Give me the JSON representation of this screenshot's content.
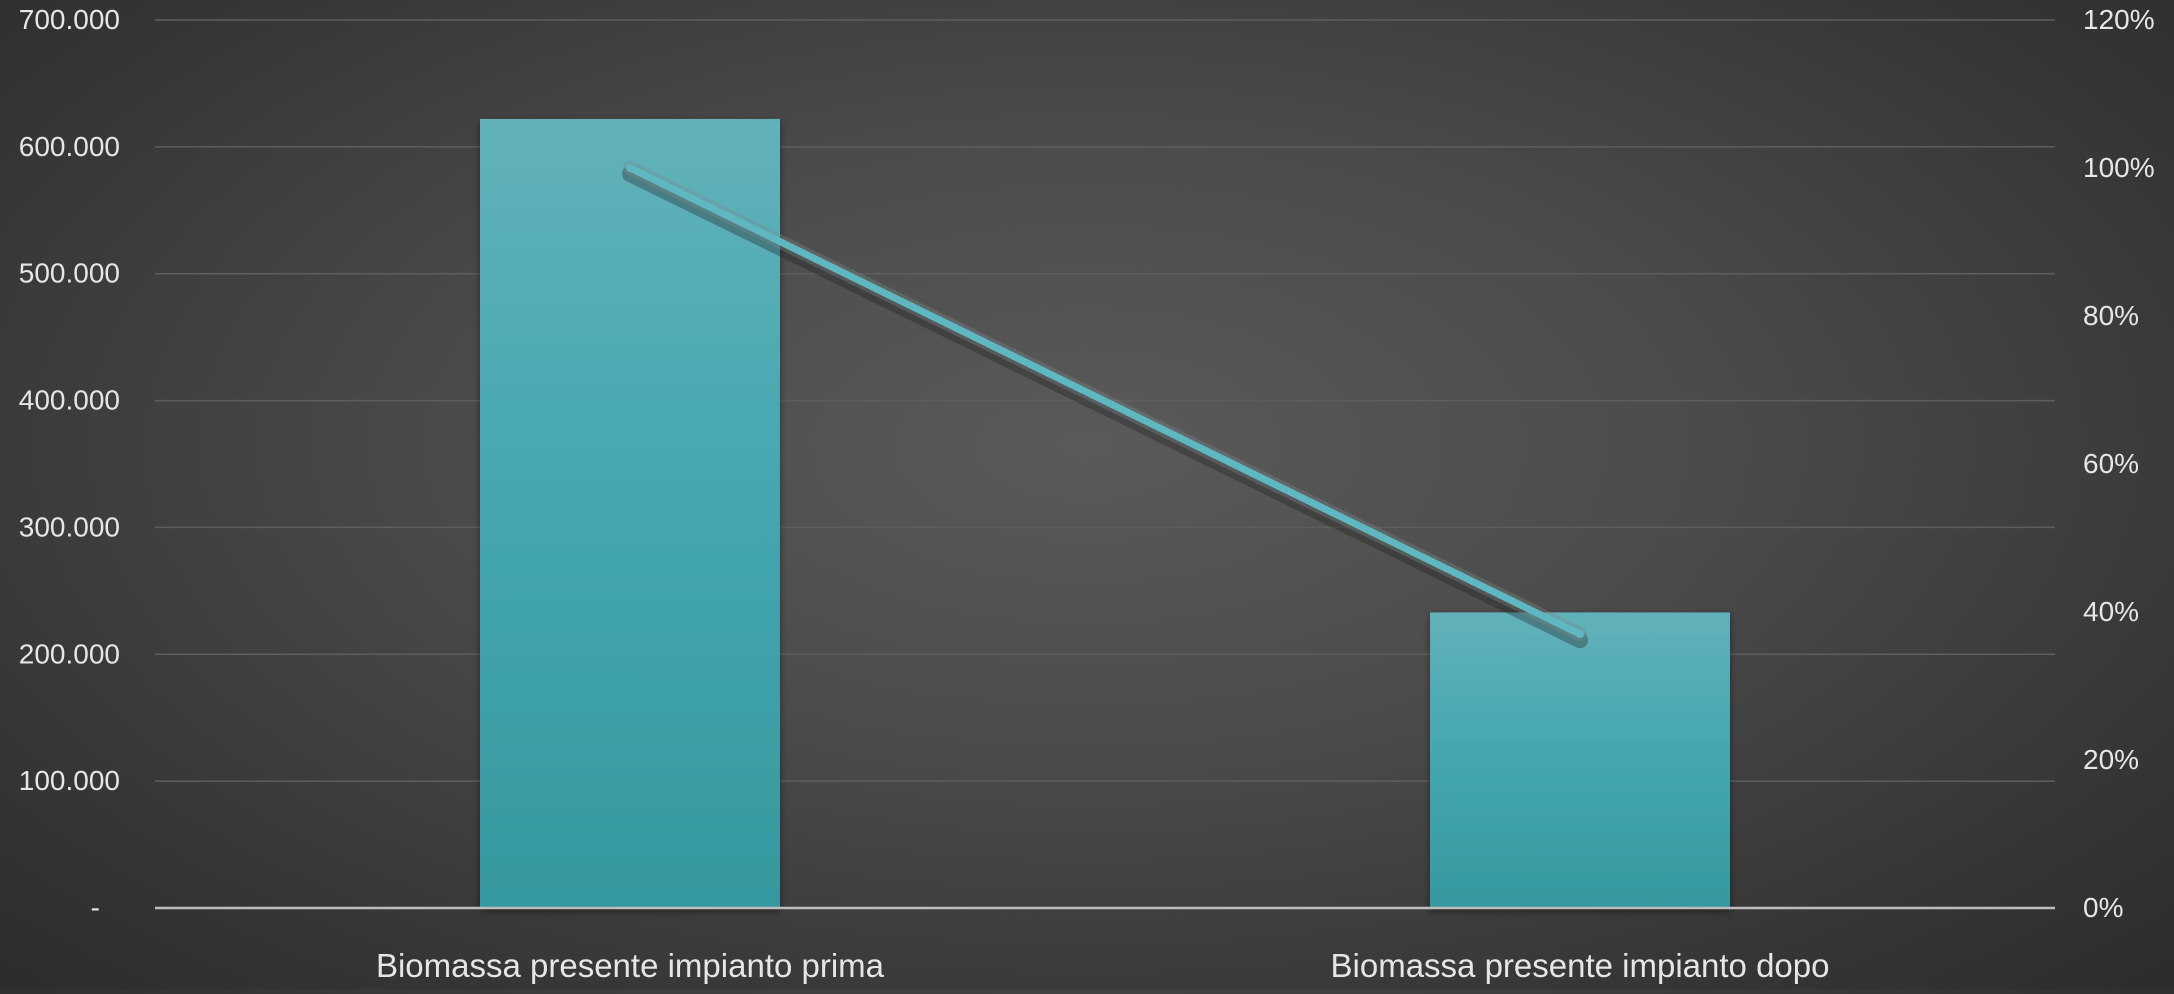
{
  "chart_data": {
    "type": "bar",
    "categories": [
      "Biomassa presente impianto prima",
      "Biomassa presente impianto dopo"
    ],
    "series": [
      {
        "kind": "bar",
        "axis": "left",
        "values": [
          622000,
          233000
        ]
      },
      {
        "kind": "line",
        "axis": "right",
        "values": [
          1.0,
          0.37
        ]
      }
    ],
    "title": "",
    "xlabel": "",
    "ylabel": "",
    "ylim": [
      0,
      700000
    ],
    "ylim_right": [
      0,
      1.2
    ],
    "y_ticks": [
      {
        "value": 0,
        "label": "-"
      },
      {
        "value": 100000,
        "label": "100.000"
      },
      {
        "value": 200000,
        "label": "200.000"
      },
      {
        "value": 300000,
        "label": "300.000"
      },
      {
        "value": 400000,
        "label": "400.000"
      },
      {
        "value": 500000,
        "label": "500.000"
      },
      {
        "value": 600000,
        "label": "600.000"
      },
      {
        "value": 700000,
        "label": "700.000"
      }
    ],
    "y_right_ticks": [
      {
        "value": 0.0,
        "label": "0%"
      },
      {
        "value": 0.2,
        "label": "20%"
      },
      {
        "value": 0.4,
        "label": "40%"
      },
      {
        "value": 0.6,
        "label": "60%"
      },
      {
        "value": 0.8,
        "label": "80%"
      },
      {
        "value": 1.0,
        "label": "100%"
      },
      {
        "value": 1.2,
        "label": "120%"
      }
    ],
    "grid": true,
    "legend": "none",
    "colors": {
      "bar_top": "#62b1ba",
      "bar_bottom": "#36989f",
      "line": "#5fb8c1",
      "grid": "#5e5e5e",
      "axis": "#bdbdbd",
      "text": "#e6e6e6"
    }
  }
}
